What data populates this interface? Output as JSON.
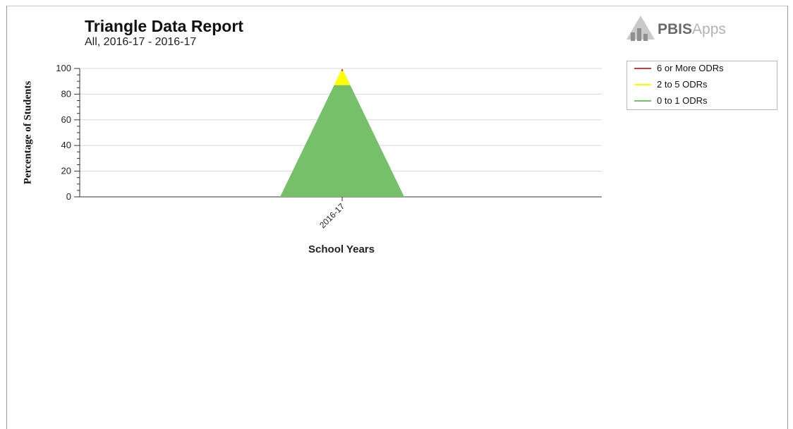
{
  "chart_data": {
    "type": "area",
    "title": "Triangle Data Report",
    "subtitle": "All, 2016-17 - 2016-17",
    "xlabel": "School Years",
    "ylabel": "Percentage of Students",
    "ylim": [
      0,
      100
    ],
    "yticks": [
      0,
      20,
      40,
      60,
      80,
      100
    ],
    "categories": [
      "2016-17"
    ],
    "series": [
      {
        "name": "6 or More ODRs",
        "color": "#c04040",
        "values": [
          2
        ]
      },
      {
        "name": "2 to 5 ODRs",
        "color": "#ffff00",
        "values": [
          11
        ]
      },
      {
        "name": "0 to 1 ODRs",
        "color": "#77c06a",
        "values": [
          87
        ]
      }
    ],
    "stack_order_bottom_up": [
      "0 to 1 ODRs",
      "2 to 5 ODRs",
      "6 or More ODRs"
    ],
    "grid": true,
    "legend_position": "top-right"
  },
  "logo": {
    "brand_bold": "PBIS",
    "brand_light": "Apps"
  }
}
